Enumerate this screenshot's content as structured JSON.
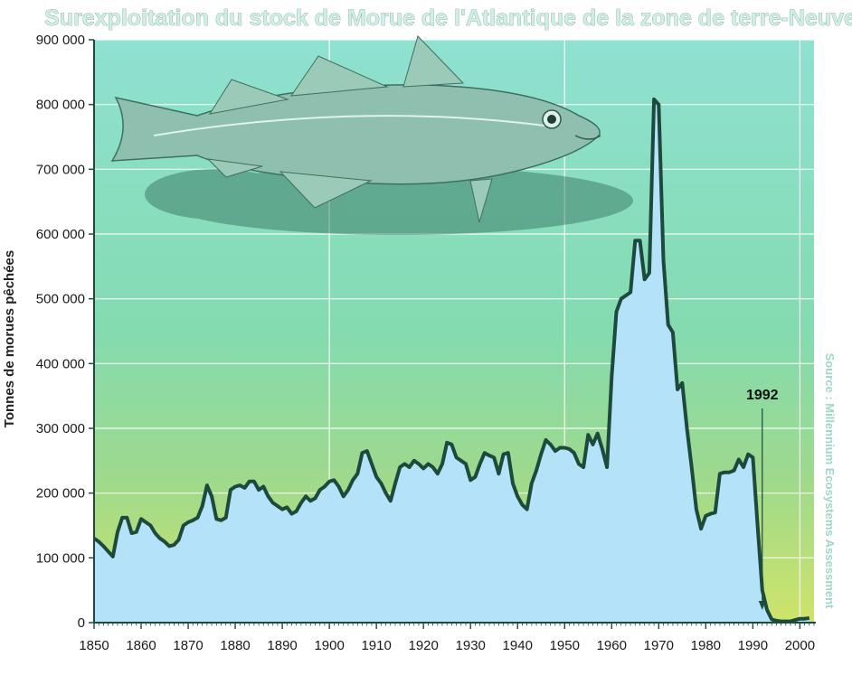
{
  "chart_data": {
    "type": "area",
    "title": "Surexploitation du stock de Morue de l'Atlantique de la zone de terre-Neuve",
    "xlabel": "",
    "ylabel": "Tonnes de morues pêchées",
    "source": "Source : Millennium Ecosystems Assessment",
    "xlim": [
      1850,
      2003
    ],
    "ylim": [
      0,
      900000
    ],
    "x_ticks": [
      1850,
      1860,
      1870,
      1880,
      1890,
      1900,
      1910,
      1920,
      1930,
      1940,
      1950,
      1960,
      1970,
      1980,
      1990,
      2000
    ],
    "y_ticks": [
      0,
      100000,
      200000,
      300000,
      400000,
      500000,
      600000,
      700000,
      800000,
      900000
    ],
    "y_tick_labels": [
      "0",
      "100 000",
      "200 000",
      "300 000",
      "400 000",
      "500 000",
      "600 000",
      "700 000",
      "800 000",
      "900 000"
    ],
    "annotation": {
      "label": "1992",
      "x": 1992
    },
    "colors": {
      "fill": "#b4e2f8",
      "line": "#1d4a3c",
      "grid": "#ffffff"
    },
    "x": [
      1850,
      1851,
      1852,
      1853,
      1854,
      1855,
      1856,
      1857,
      1858,
      1859,
      1860,
      1861,
      1862,
      1863,
      1864,
      1865,
      1866,
      1867,
      1868,
      1869,
      1870,
      1871,
      1872,
      1873,
      1874,
      1875,
      1876,
      1877,
      1878,
      1879,
      1880,
      1881,
      1882,
      1883,
      1884,
      1885,
      1886,
      1887,
      1888,
      1889,
      1890,
      1891,
      1892,
      1893,
      1894,
      1895,
      1896,
      1897,
      1898,
      1899,
      1900,
      1901,
      1902,
      1903,
      1904,
      1905,
      1906,
      1907,
      1908,
      1909,
      1910,
      1911,
      1912,
      1913,
      1914,
      1915,
      1916,
      1917,
      1918,
      1919,
      1920,
      1921,
      1922,
      1923,
      1924,
      1925,
      1926,
      1927,
      1928,
      1929,
      1930,
      1931,
      1932,
      1933,
      1934,
      1935,
      1936,
      1937,
      1938,
      1939,
      1940,
      1941,
      1942,
      1943,
      1944,
      1945,
      1946,
      1947,
      1948,
      1949,
      1950,
      1951,
      1952,
      1953,
      1954,
      1955,
      1956,
      1957,
      1958,
      1959,
      1960,
      1961,
      1962,
      1963,
      1964,
      1965,
      1966,
      1967,
      1968,
      1969,
      1970,
      1971,
      1972,
      1973,
      1974,
      1975,
      1976,
      1977,
      1978,
      1979,
      1980,
      1981,
      1982,
      1983,
      1984,
      1985,
      1986,
      1987,
      1988,
      1989,
      1990,
      1991,
      1992,
      1993,
      1994,
      1995,
      1996,
      1997,
      1998,
      1999,
      2000,
      2001,
      2002
    ],
    "values": [
      130000,
      125000,
      118000,
      110000,
      102000,
      140000,
      162000,
      162000,
      138000,
      140000,
      160000,
      155000,
      150000,
      138000,
      130000,
      125000,
      118000,
      120000,
      128000,
      150000,
      155000,
      158000,
      162000,
      180000,
      212000,
      195000,
      160000,
      158000,
      162000,
      205000,
      210000,
      212000,
      208000,
      218000,
      218000,
      205000,
      210000,
      195000,
      185000,
      180000,
      175000,
      178000,
      168000,
      172000,
      185000,
      195000,
      188000,
      192000,
      205000,
      210000,
      218000,
      220000,
      210000,
      195000,
      205000,
      220000,
      230000,
      262000,
      265000,
      245000,
      225000,
      215000,
      200000,
      188000,
      215000,
      240000,
      245000,
      240000,
      250000,
      245000,
      238000,
      245000,
      240000,
      230000,
      245000,
      278000,
      275000,
      255000,
      250000,
      245000,
      220000,
      225000,
      245000,
      262000,
      258000,
      255000,
      230000,
      260000,
      262000,
      215000,
      195000,
      182000,
      175000,
      215000,
      235000,
      260000,
      282000,
      275000,
      265000,
      270000,
      270000,
      268000,
      262000,
      245000,
      240000,
      290000,
      275000,
      292000,
      268000,
      240000,
      380000,
      480000,
      500000,
      505000,
      510000,
      590000,
      590000,
      530000,
      540000,
      808000,
      800000,
      560000,
      460000,
      448000,
      360000,
      370000,
      300000,
      240000,
      175000,
      145000,
      165000,
      168000,
      170000,
      230000,
      232000,
      232000,
      235000,
      252000,
      240000,
      260000,
      255000,
      150000,
      50000,
      20000,
      5000,
      3000,
      2000,
      2000,
      2000,
      4000,
      6000,
      6000,
      7000
    ]
  }
}
